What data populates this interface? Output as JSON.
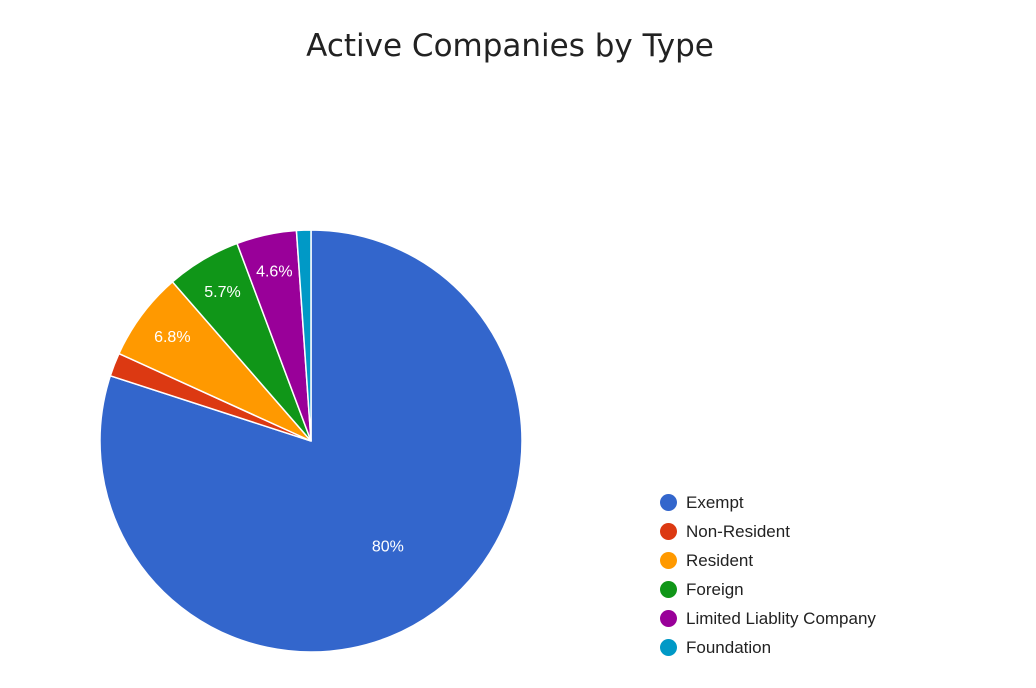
{
  "chart_data": {
    "type": "pie",
    "title": "Active Companies by Type",
    "slices": [
      {
        "name": "Exempt",
        "value": 80.0,
        "label": "80%",
        "color": "#3366cc"
      },
      {
        "name": "Non-Resident",
        "value": 1.8,
        "label": "",
        "color": "#dc3912"
      },
      {
        "name": "Resident",
        "value": 6.8,
        "label": "6.8%",
        "color": "#ff9900"
      },
      {
        "name": "Foreign",
        "value": 5.7,
        "label": "5.7%",
        "color": "#109618"
      },
      {
        "name": "Limited Liablity Company",
        "value": 4.6,
        "label": "4.6%",
        "color": "#990099"
      },
      {
        "name": "Foundation",
        "value": 1.1,
        "label": "",
        "color": "#0099c6"
      }
    ],
    "legend_position": "bottom-right"
  }
}
